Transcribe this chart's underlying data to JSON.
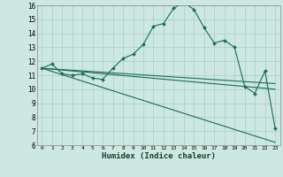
{
  "title": "",
  "xlabel": "Humidex (Indice chaleur)",
  "xlim": [
    -0.5,
    23.5
  ],
  "ylim": [
    6,
    16
  ],
  "yticks": [
    6,
    7,
    8,
    9,
    10,
    11,
    12,
    13,
    14,
    15,
    16
  ],
  "xticks": [
    0,
    1,
    2,
    3,
    4,
    5,
    6,
    7,
    8,
    9,
    10,
    11,
    12,
    13,
    14,
    15,
    16,
    17,
    18,
    19,
    20,
    21,
    22,
    23
  ],
  "bg_color": "#cce8e0",
  "grid_color": "#aacccc",
  "line_color": "#1a6b5a",
  "lines": [
    {
      "x": [
        0,
        1,
        2,
        3,
        4,
        5,
        6,
        7,
        8,
        9,
        10,
        11,
        12,
        13,
        14,
        15,
        16,
        17,
        18,
        19,
        20,
        21,
        22,
        23
      ],
      "y": [
        11.5,
        11.8,
        11.1,
        11.0,
        11.1,
        10.8,
        10.7,
        11.5,
        12.2,
        12.5,
        13.2,
        14.5,
        14.7,
        15.8,
        16.2,
        15.7,
        14.4,
        13.3,
        13.5,
        13.0,
        10.2,
        9.7,
        11.3,
        7.2
      ],
      "marker": true
    },
    {
      "x": [
        0,
        23
      ],
      "y": [
        11.5,
        6.2
      ],
      "marker": false
    },
    {
      "x": [
        0,
        23
      ],
      "y": [
        11.5,
        10.0
      ],
      "marker": false
    },
    {
      "x": [
        0,
        23
      ],
      "y": [
        11.5,
        10.4
      ],
      "marker": false
    }
  ]
}
